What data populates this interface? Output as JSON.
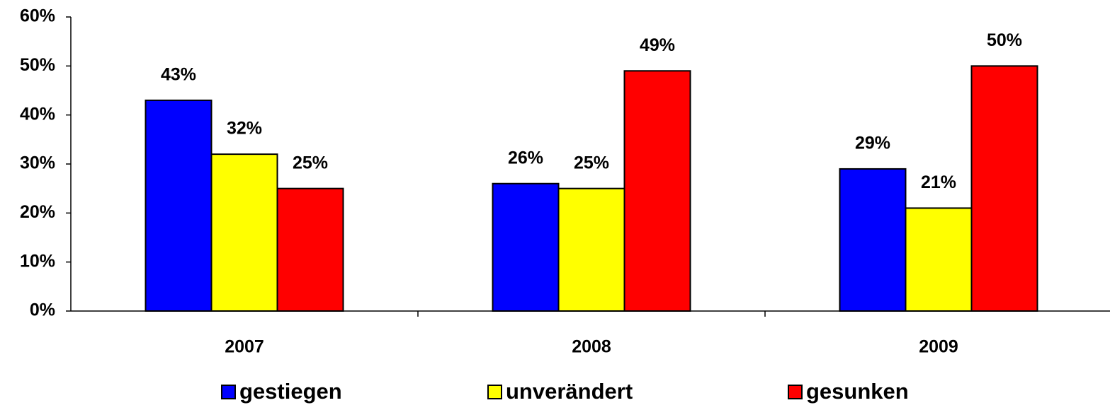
{
  "chart_data": {
    "type": "bar",
    "categories": [
      "2007",
      "2008",
      "2009"
    ],
    "series": [
      {
        "name": "gestiegen",
        "color": "#0000ff",
        "values": [
          43,
          26,
          29
        ],
        "value_labels": [
          "43%",
          "26%",
          "29%"
        ]
      },
      {
        "name": "unverändert",
        "color": "#ffff00",
        "values": [
          32,
          25,
          21
        ],
        "value_labels": [
          "32%",
          "25%",
          "21%"
        ]
      },
      {
        "name": "gesunken",
        "color": "#ff0000",
        "values": [
          25,
          49,
          50
        ],
        "value_labels": [
          "25%",
          "49%",
          "50%"
        ]
      }
    ],
    "ylim": [
      0,
      60
    ],
    "yticks": [
      {
        "value": 0,
        "label": "0%"
      },
      {
        "value": 10,
        "label": "10%"
      },
      {
        "value": 20,
        "label": "20%"
      },
      {
        "value": 30,
        "label": "30%"
      },
      {
        "value": 40,
        "label": "40%"
      },
      {
        "value": 50,
        "label": "50%"
      },
      {
        "value": 60,
        "label": "60%"
      }
    ],
    "legend": "bottom"
  }
}
